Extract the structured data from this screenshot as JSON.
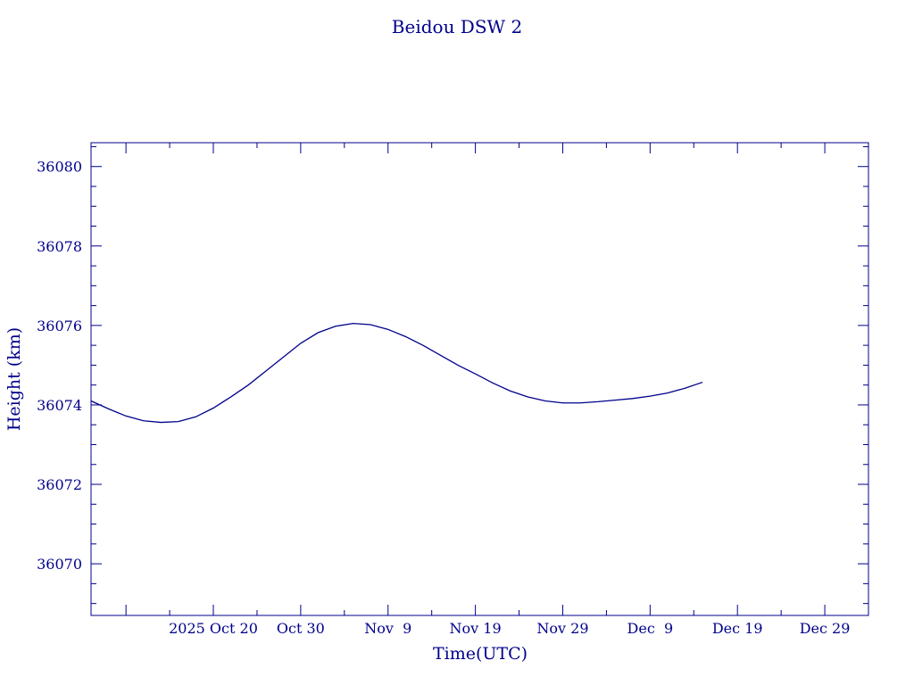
{
  "colors": {
    "ink": "#00008b",
    "background": "#ffffff"
  },
  "chart_data": {
    "type": "line",
    "title": "Beidou DSW 2",
    "xlabel": "Time(UTC)",
    "ylabel": "Height (km)",
    "xlim": [
      "2025-10-06",
      "2026-01-03"
    ],
    "ylim": [
      36068.7,
      36080.6
    ],
    "grid": false,
    "x_ticks": [
      {
        "date": "2025-10-10",
        "label": ""
      },
      {
        "date": "2025-10-20",
        "label": "2025 Oct 20"
      },
      {
        "date": "2025-10-30",
        "label": "Oct 30"
      },
      {
        "date": "2025-11-09",
        "label": "Nov  9"
      },
      {
        "date": "2025-11-19",
        "label": "Nov 19"
      },
      {
        "date": "2025-11-29",
        "label": "Nov 29"
      },
      {
        "date": "2025-12-09",
        "label": "Dec  9"
      },
      {
        "date": "2025-12-19",
        "label": "Dec 19"
      },
      {
        "date": "2025-12-29",
        "label": "Dec 29"
      }
    ],
    "x_minor_ticks": [
      "2025-10-15",
      "2025-10-25",
      "2025-11-04",
      "2025-11-14",
      "2025-11-24",
      "2025-12-04",
      "2025-12-14",
      "2025-12-24",
      "2026-01-03"
    ],
    "y_ticks": [
      36070,
      36072,
      36074,
      36076,
      36078,
      36080
    ],
    "y_tick_labels": [
      "36070",
      "36072",
      "36074",
      "36076",
      "36078",
      "36080"
    ],
    "y_minor_step": 0.5,
    "series": [
      {
        "x": [
          "2025-10-06",
          "2025-10-08",
          "2025-10-10",
          "2025-10-12",
          "2025-10-14",
          "2025-10-16",
          "2025-10-18",
          "2025-10-20",
          "2025-10-22",
          "2025-10-24",
          "2025-10-26",
          "2025-10-28",
          "2025-10-30",
          "2025-11-01",
          "2025-11-03",
          "2025-11-05",
          "2025-11-07",
          "2025-11-09",
          "2025-11-11",
          "2025-11-13",
          "2025-11-15",
          "2025-11-17",
          "2025-11-19",
          "2025-11-21",
          "2025-11-23",
          "2025-11-25",
          "2025-11-27",
          "2025-11-29",
          "2025-12-01",
          "2025-12-03",
          "2025-12-05",
          "2025-12-07",
          "2025-12-09",
          "2025-12-11",
          "2025-12-13",
          "2025-12-15"
        ],
        "y": [
          36074.1,
          36073.9,
          36073.72,
          36073.6,
          36073.56,
          36073.58,
          36073.7,
          36073.92,
          36074.2,
          36074.5,
          36074.85,
          36075.2,
          36075.55,
          36075.82,
          36075.98,
          36076.05,
          36076.02,
          36075.9,
          36075.72,
          36075.5,
          36075.25,
          36075.0,
          36074.78,
          36074.55,
          36074.35,
          36074.2,
          36074.1,
          36074.05,
          36074.05,
          36074.08,
          36074.12,
          36074.16,
          36074.22,
          36074.3,
          36074.42,
          36074.57
        ]
      }
    ]
  }
}
